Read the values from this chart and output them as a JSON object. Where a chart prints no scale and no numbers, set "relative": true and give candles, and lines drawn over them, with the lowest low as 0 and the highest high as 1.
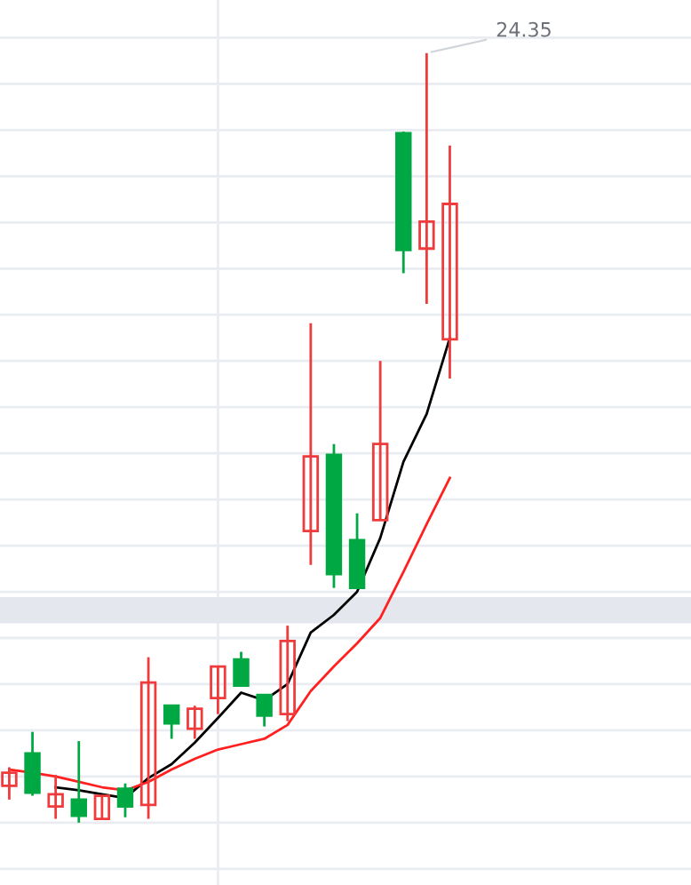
{
  "chart_data": {
    "type": "candlestick",
    "categories": [
      null,
      null,
      null,
      null,
      null,
      null,
      null,
      null,
      null,
      null,
      null,
      null,
      null,
      null,
      null,
      null,
      null,
      null,
      null,
      null
    ],
    "relative": true,
    "ohlc": [
      [
        0.048,
        0.072,
        0.03,
        0.065
      ],
      [
        0.09,
        0.118,
        0.035,
        0.039
      ],
      [
        0.021,
        0.062,
        0.005,
        0.037
      ],
      [
        0.03,
        0.106,
        0.0,
        0.009
      ],
      [
        0.005,
        0.035,
        0.005,
        0.035
      ],
      [
        0.044,
        0.051,
        0.007,
        0.021
      ],
      [
        0.023,
        0.215,
        0.005,
        0.182
      ],
      [
        0.152,
        0.152,
        0.109,
        0.129
      ],
      [
        0.122,
        0.152,
        0.109,
        0.148
      ],
      [
        0.162,
        0.203,
        0.141,
        0.203
      ],
      [
        0.212,
        0.222,
        0.178,
        0.178
      ],
      [
        0.166,
        0.166,
        0.125,
        0.139
      ],
      [
        0.141,
        0.256,
        0.132,
        0.236
      ],
      [
        0.379,
        0.649,
        0.335,
        0.476
      ],
      [
        0.478,
        0.492,
        0.305,
        0.323
      ],
      [
        0.367,
        0.402,
        0.305,
        0.305
      ],
      [
        0.393,
        0.6,
        0.393,
        0.492
      ],
      [
        0.896,
        0.898,
        0.714,
        0.744
      ],
      [
        0.746,
        1.0,
        0.674,
        0.781
      ],
      [
        0.628,
        0.88,
        0.577,
        0.804
      ]
    ],
    "colors": [
      "#ef3b3b",
      "#00a843",
      "#ef3b3b",
      "#00a843",
      "#ef3b3b",
      "#00a843",
      "#ef3b3b",
      "#00a843",
      "#ef3b3b",
      "#ef3b3b",
      "#00a843",
      "#00a843",
      "#ef3b3b",
      "#ef3b3b",
      "#00a843",
      "#00a843",
      "#ef3b3b",
      "#00a843",
      "#ef3b3b",
      "#ef3b3b"
    ],
    "series": [
      {
        "type": "line",
        "color": "#000000",
        "values": [
          null,
          null,
          0.046,
          0.042,
          0.037,
          0.032,
          0.058,
          0.076,
          0.104,
          0.136,
          0.169,
          0.159,
          0.18,
          0.247,
          0.27,
          0.3,
          0.37,
          0.469,
          0.531,
          0.63
        ]
      },
      {
        "type": "line",
        "color": "#ff2020",
        "values": [
          0.069,
          0.065,
          0.06,
          0.053,
          0.046,
          0.042,
          0.053,
          0.069,
          0.083,
          0.095,
          0.102,
          0.109,
          0.127,
          0.171,
          0.203,
          0.233,
          0.266,
          0.326,
          0.388,
          0.448
        ]
      }
    ],
    "bands": [
      {
        "axis": "y",
        "from": 0.259,
        "to": 0.293,
        "color": "#e4e8ee"
      }
    ],
    "annotations": [
      "24.35"
    ],
    "grid": true
  }
}
